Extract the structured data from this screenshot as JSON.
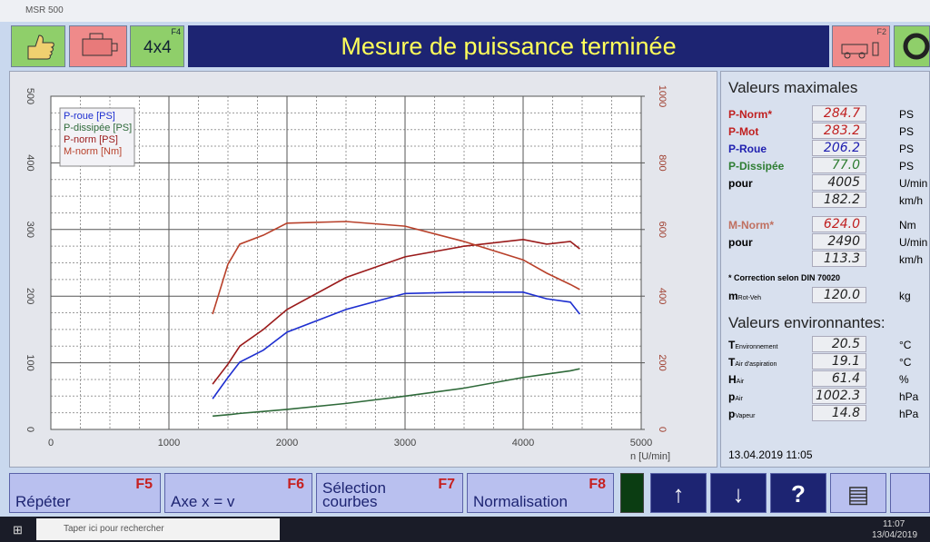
{
  "window": {
    "title": "MSR 500"
  },
  "toolbar": {
    "drive_key": "F4",
    "drive_label": "4x4",
    "status": "Mesure de puissance terminée",
    "brake_key": "F2"
  },
  "chart_data": {
    "type": "line",
    "x": [
      1370,
      1500,
      1600,
      1800,
      2000,
      2500,
      3000,
      3500,
      4000,
      4200,
      4400,
      4480
    ],
    "series": [
      {
        "name": "P-roue [PS]",
        "color": "#1e2fd0",
        "values": [
          46,
          78,
          101,
          119,
          146,
          180,
          204,
          206,
          206,
          196,
          191,
          173
        ]
      },
      {
        "name": "P-dissipée [PS]",
        "color": "#2f6a3a",
        "values": [
          20,
          22,
          24,
          27,
          30,
          39,
          50,
          62,
          78,
          83,
          88,
          91
        ]
      },
      {
        "name": "P-norm [PS]",
        "color": "#9a1a1a",
        "values": [
          68,
          98,
          125,
          150,
          180,
          228,
          259,
          275,
          285,
          278,
          282,
          271
        ]
      },
      {
        "name": "M-norm [Nm]",
        "color": "#b8402a",
        "axis": "y2",
        "values": [
          346,
          496,
          556,
          583,
          619,
          624,
          610,
          564,
          509,
          469,
          435,
          420
        ]
      }
    ],
    "xlabel": "n [U/min]",
    "xlim": [
      0,
      5000
    ],
    "xticks": [
      0,
      1000,
      2000,
      3000,
      4000,
      5000
    ],
    "ylim": [
      0,
      500
    ],
    "yticks": [
      0,
      100,
      200,
      300,
      400,
      500
    ],
    "y2lim": [
      0,
      1000
    ],
    "y2ticks": [
      0,
      200,
      400,
      600,
      800,
      1000
    ],
    "grid": true,
    "legend": "upper left"
  },
  "panel": {
    "max_title": "Valeurs maximales",
    "max_rows": [
      {
        "label": "P-Norm*",
        "value": "284.7",
        "unit": "PS"
      },
      {
        "label": "P-Mot",
        "value": "283.2",
        "unit": "PS"
      },
      {
        "label": "P-Roue",
        "value": "206.2",
        "unit": "PS"
      },
      {
        "label": "P-Dissipée",
        "value": "77.0",
        "unit": "PS"
      },
      {
        "label": "pour",
        "value": "4005",
        "unit": "U/min"
      },
      {
        "value": "182.2",
        "unit": "km/h"
      }
    ],
    "torque_rows": [
      {
        "label": "M-Norm*",
        "value": "624.0",
        "unit": "Nm"
      },
      {
        "label": "pour",
        "value": "2490",
        "unit": "U/min"
      },
      {
        "value": "113.3",
        "unit": "km/h"
      }
    ],
    "note": "* Correction selon DIN 70020",
    "mass": {
      "label": "m",
      "sub": "Rot-Veh",
      "value": "120.0",
      "unit": "kg"
    },
    "env_title": "Valeurs environnantes:",
    "env_rows": [
      {
        "label": "T",
        "sub": "Environnement",
        "value": "20.5",
        "unit": "°C"
      },
      {
        "label": "T",
        "sub": "Air d'aspiration",
        "value": "19.1",
        "unit": "°C"
      },
      {
        "label": "H",
        "sub": "Air",
        "value": "61.4",
        "unit": "%"
      },
      {
        "label": "p",
        "sub": "Air",
        "value": "1002.3",
        "unit": "hPa"
      },
      {
        "label": "p",
        "sub": "Vapeur",
        "value": "14.8",
        "unit": "hPa"
      }
    ],
    "timestamp": "13.04.2019  11:05"
  },
  "buttons": [
    {
      "label": "Répéter",
      "key": "F5"
    },
    {
      "label": "Axe x = v",
      "key": "F6"
    },
    {
      "label": "Sélection courbes",
      "key": "F7"
    },
    {
      "label": "Normalisation",
      "key": "F8"
    }
  ],
  "taskbar": {
    "search": "Taper ici pour rechercher",
    "time": "11:07",
    "date": "13/04/2019"
  }
}
